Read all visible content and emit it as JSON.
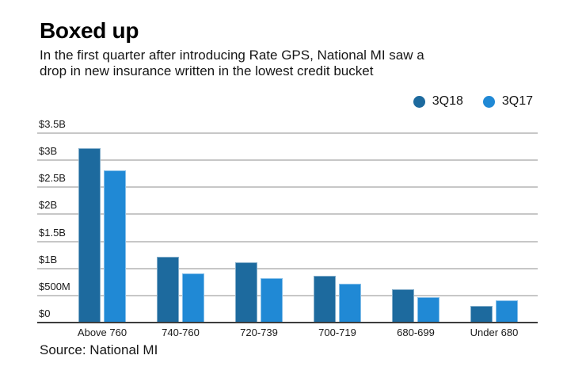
{
  "header": {
    "title": "Boxed up",
    "subtitle_lines": [
      "In the first quarter after introducing Rate GPS, National MI saw a",
      "drop in new insurance written in the lowest credit bucket"
    ]
  },
  "chart_data": {
    "type": "bar",
    "title": "Boxed up",
    "subtitle": "In the first quarter after introducing Rate GPS, National MI saw a drop in new insurance written in the lowest credit bucket",
    "unit": "USD billions",
    "categories": [
      "Above 760",
      "740-760",
      "720-739",
      "700-719",
      "680-699",
      "Under 680"
    ],
    "series": [
      {
        "name": "3Q18",
        "color": "#1d6a9e",
        "values_billions": [
          3.2,
          1.2,
          1.1,
          0.85,
          0.6,
          0.3
        ]
      },
      {
        "name": "3Q17",
        "color": "#2089d5",
        "values_billions": [
          2.8,
          0.9,
          0.8,
          0.7,
          0.45,
          0.4
        ]
      }
    ],
    "xlabel": "",
    "ylabel": "",
    "ylim": [
      0,
      3.5
    ],
    "yticks": [
      {
        "label": "$3.5B",
        "value": 3.5
      },
      {
        "label": "$3B",
        "value": 3.0
      },
      {
        "label": "$2.5B",
        "value": 2.5
      },
      {
        "label": "$2B",
        "value": 2.0
      },
      {
        "label": "$1.5B",
        "value": 1.5
      },
      {
        "label": "$1B",
        "value": 1.0
      },
      {
        "label": "$500M",
        "value": 0.5
      },
      {
        "label": "$0",
        "value": 0
      }
    ],
    "legend": [
      "3Q18",
      "3Q17"
    ],
    "legend_position": "top-right",
    "grid": "horizontal"
  },
  "source": {
    "label": "Source: National MI"
  }
}
